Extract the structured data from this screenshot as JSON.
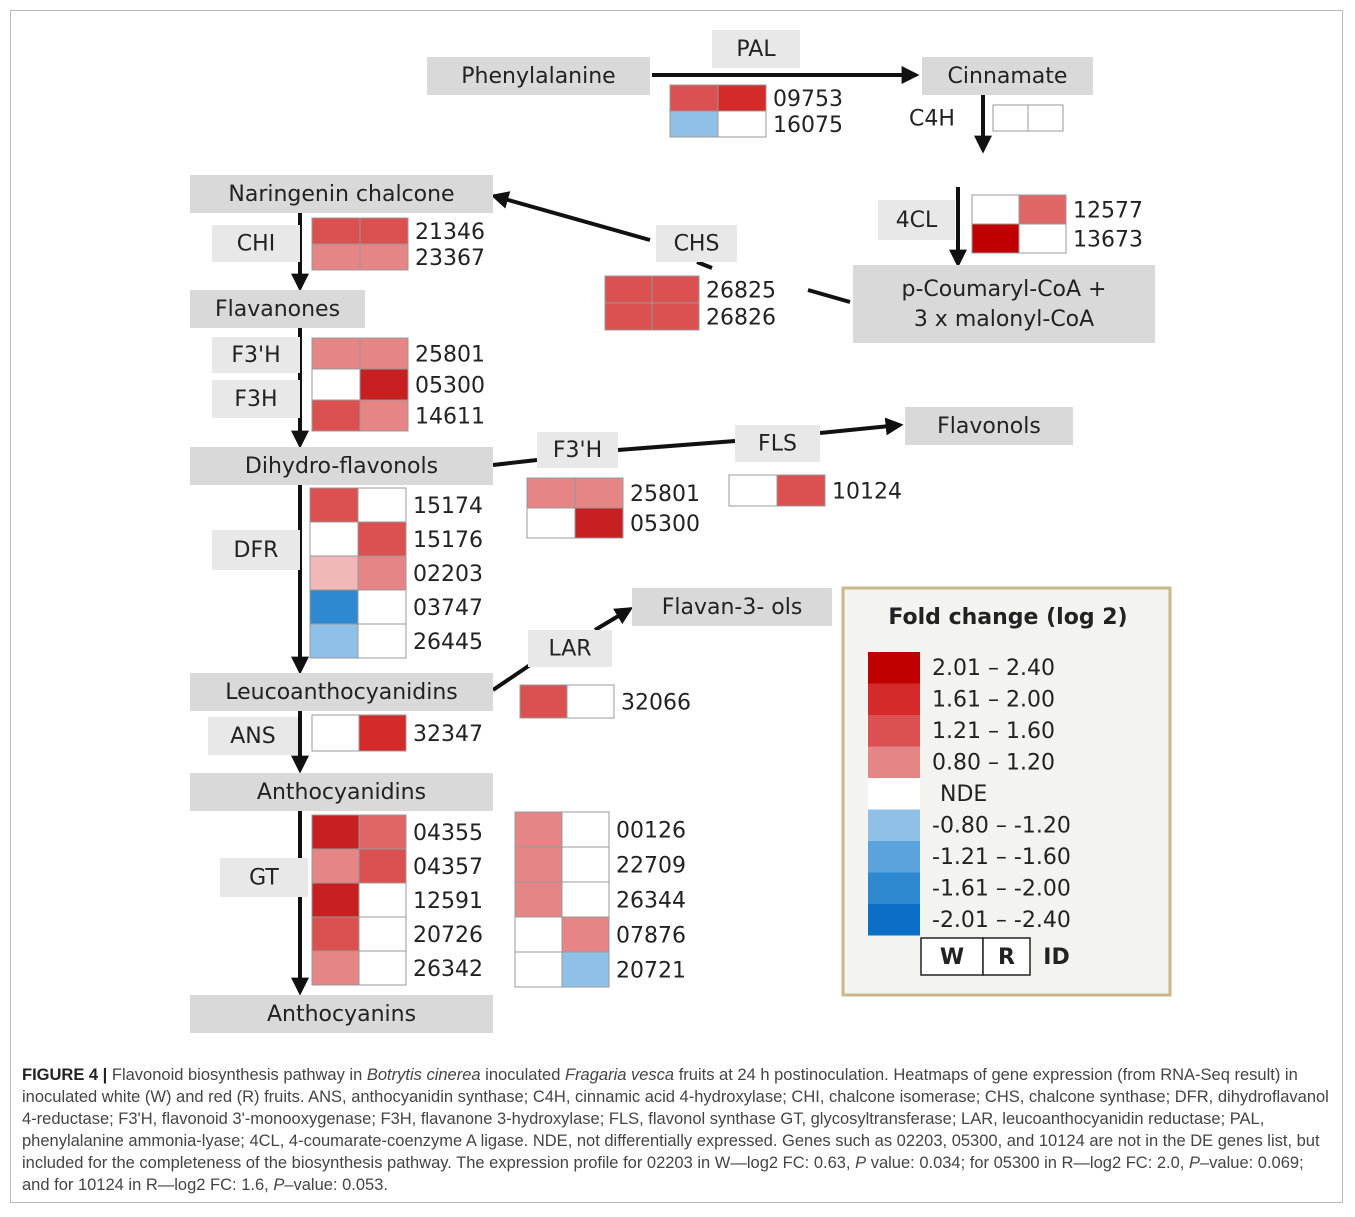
{
  "compounds": [
    {
      "lines": [
        "Phenylalanine"
      ]
    },
    {
      "lines": [
        "Cinnamate"
      ]
    },
    {
      "lines": [
        "Naringenin chalcone"
      ]
    },
    {
      "lines": [
        "Flavanones"
      ]
    },
    {
      "lines": [
        "p-Coumaryl-CoA +",
        "3 x malonyl-CoA"
      ]
    },
    {
      "lines": [
        "Dihydro-flavonols"
      ]
    },
    {
      "lines": [
        "Flavonols"
      ]
    },
    {
      "lines": [
        "Flavan-3- ols"
      ]
    },
    {
      "lines": [
        "Leucoanthocyanidins"
      ]
    },
    {
      "lines": [
        "Anthocyanidins"
      ]
    },
    {
      "lines": [
        "Anthocyanins"
      ]
    }
  ],
  "enzymes": [
    "PAL",
    "C4H",
    "4CL",
    "CHS",
    "CHI",
    "F3'H",
    "F3H",
    "F3'H",
    "FLS",
    "DFR",
    "LAR",
    "ANS",
    "GT"
  ],
  "heatmaps": [
    {
      "genes": [
        {
          "id": "09753",
          "cells": [
            "#db5050",
            "#d42a2a"
          ]
        },
        {
          "id": "16075",
          "cells": [
            "#8fc1e6",
            "#ffffff"
          ]
        }
      ]
    },
    {
      "genes": [
        {
          "cells": [
            "#ffffff",
            "#ffffff"
          ]
        }
      ]
    },
    {
      "genes": [
        {
          "id": "12577",
          "cells": [
            "#ffffff",
            "#e06666"
          ]
        },
        {
          "id": "13673",
          "cells": [
            "#c00000",
            "#ffffff"
          ]
        }
      ]
    },
    {
      "genes": [
        {
          "id": "26825",
          "cells": [
            "#db5050",
            "#db5050"
          ]
        },
        {
          "id": "26826",
          "cells": [
            "#db5050",
            "#db5050"
          ]
        }
      ]
    },
    {
      "genes": [
        {
          "id": "21346",
          "cells": [
            "#db5050",
            "#db5050"
          ]
        },
        {
          "id": "23367",
          "cells": [
            "#e58585",
            "#e58585"
          ]
        }
      ]
    },
    {
      "genes": [
        {
          "id": "25801",
          "cells": [
            "#e58585",
            "#e58585"
          ]
        },
        {
          "id": "05300",
          "cells": [
            "#ffffff",
            "#c82020"
          ]
        },
        {
          "id": "14611",
          "cells": [
            "#db5050",
            "#e58585"
          ]
        }
      ]
    },
    {
      "genes": [
        {
          "id": "25801",
          "cells": [
            "#e58585",
            "#e58585"
          ]
        },
        {
          "id": "05300",
          "cells": [
            "#ffffff",
            "#c82020"
          ]
        }
      ]
    },
    {
      "genes": [
        {
          "id": "10124",
          "cells": [
            "#ffffff",
            "#db5050"
          ]
        }
      ]
    },
    {
      "genes": [
        {
          "id": "15174",
          "cells": [
            "#db5050",
            "#ffffff"
          ]
        },
        {
          "id": "15176",
          "cells": [
            "#ffffff",
            "#db5050"
          ]
        },
        {
          "id": "02203",
          "cells": [
            "#f0b8b8",
            "#e58585"
          ]
        },
        {
          "id": "03747",
          "cells": [
            "#2e89d0",
            "#ffffff"
          ]
        },
        {
          "id": "26445",
          "cells": [
            "#8fc1e6",
            "#ffffff"
          ]
        }
      ]
    },
    {
      "genes": [
        {
          "id": "32066",
          "cells": [
            "#db5050",
            "#ffffff"
          ]
        }
      ]
    },
    {
      "genes": [
        {
          "id": "32347",
          "cells": [
            "#ffffff",
            "#d42a2a"
          ]
        }
      ]
    },
    {
      "genes": [
        {
          "id": "04355",
          "cells": [
            "#c82020",
            "#e06666"
          ]
        },
        {
          "id": "04357",
          "cells": [
            "#e58585",
            "#db5050"
          ]
        },
        {
          "id": "12591",
          "cells": [
            "#c82020",
            "#ffffff"
          ]
        },
        {
          "id": "20726",
          "cells": [
            "#db5050",
            "#ffffff"
          ]
        },
        {
          "id": "26342",
          "cells": [
            "#e58585",
            "#ffffff"
          ]
        }
      ]
    },
    {
      "genes": [
        {
          "id": "00126",
          "cells": [
            "#e58585",
            "#ffffff"
          ]
        },
        {
          "id": "22709",
          "cells": [
            "#e58585",
            "#ffffff"
          ]
        },
        {
          "id": "26344",
          "cells": [
            "#e58585",
            "#ffffff"
          ]
        },
        {
          "id": "07876",
          "cells": [
            "#ffffff",
            "#e58585"
          ]
        },
        {
          "id": "20721",
          "cells": [
            "#ffffff",
            "#8fc1e6"
          ]
        }
      ]
    }
  ],
  "legend": {
    "title": "Fold change (log 2)",
    "entries": [
      {
        "label": "2.01 –  2.40",
        "color": "#c00000"
      },
      {
        "label": "1.61 –  2.00",
        "color": "#d42a2a"
      },
      {
        "label": "1.21 – 1.60",
        "color": "#db5050"
      },
      {
        "label": "0.80 – 1.20",
        "color": "#e58585"
      },
      {
        "label": "NDE",
        "color": "#ffffff"
      },
      {
        "label": "-0.80 –  -1.20",
        "color": "#8fc1e6"
      },
      {
        "label": "-1.21 –  -1.60",
        "color": "#5aa3dc"
      },
      {
        "label": "-1.61 –  -2.00",
        "color": "#2e89d0"
      },
      {
        "label": "-2.01 –  -2.40",
        "color": "#0b6fc6"
      }
    ],
    "key": [
      "W",
      "R",
      "ID"
    ]
  },
  "caption": {
    "label": "FIGURE 4 |",
    "parts": [
      {
        "text": " Flavonoid biosynthesis pathway in ",
        "italic": false
      },
      {
        "text": "Botrytis cinerea",
        "italic": true
      },
      {
        "text": " inoculated ",
        "italic": false
      },
      {
        "text": "Fragaria vesca",
        "italic": true
      },
      {
        "text": " fruits at 24 h postinoculation. Heatmaps of gene expression (from RNA-Seq result) in inoculated white (W) and red (R) fruits. ANS, anthocyanidin synthase; C4H, cinnamic acid 4-hydroxylase; CHI, chalcone isomerase; CHS, chalcone synthase; DFR, dihydroflavanol 4-reductase; F3'H, flavonoid 3'-monooxygenase; F3H, flavanone 3-hydroxylase; FLS, flavonol synthase GT, glycosyltransferase; LAR, leucoanthocyanidin reductase; PAL, phenylalanine ammonia-lyase; 4CL, 4-coumarate-coenzyme A ligase. NDE, not differentially expressed. Genes such as 02203, 05300, and 10124 are not in the DE genes list, but included for the completeness of the biosynthesis pathway. The expression profile for 02203 in W—log2 FC: 0.63, ",
        "italic": false
      },
      {
        "text": "P",
        "italic": true
      },
      {
        "text": " value: 0.034; for 05300 in R—log2 FC: 2.0, ",
        "italic": false
      },
      {
        "text": "P",
        "italic": true
      },
      {
        "text": "–value: 0.069; and for 10124 in R—log2 FC: 1.6, ",
        "italic": false
      },
      {
        "text": "P",
        "italic": true
      },
      {
        "text": "–value: 0.053.",
        "italic": false
      }
    ]
  }
}
